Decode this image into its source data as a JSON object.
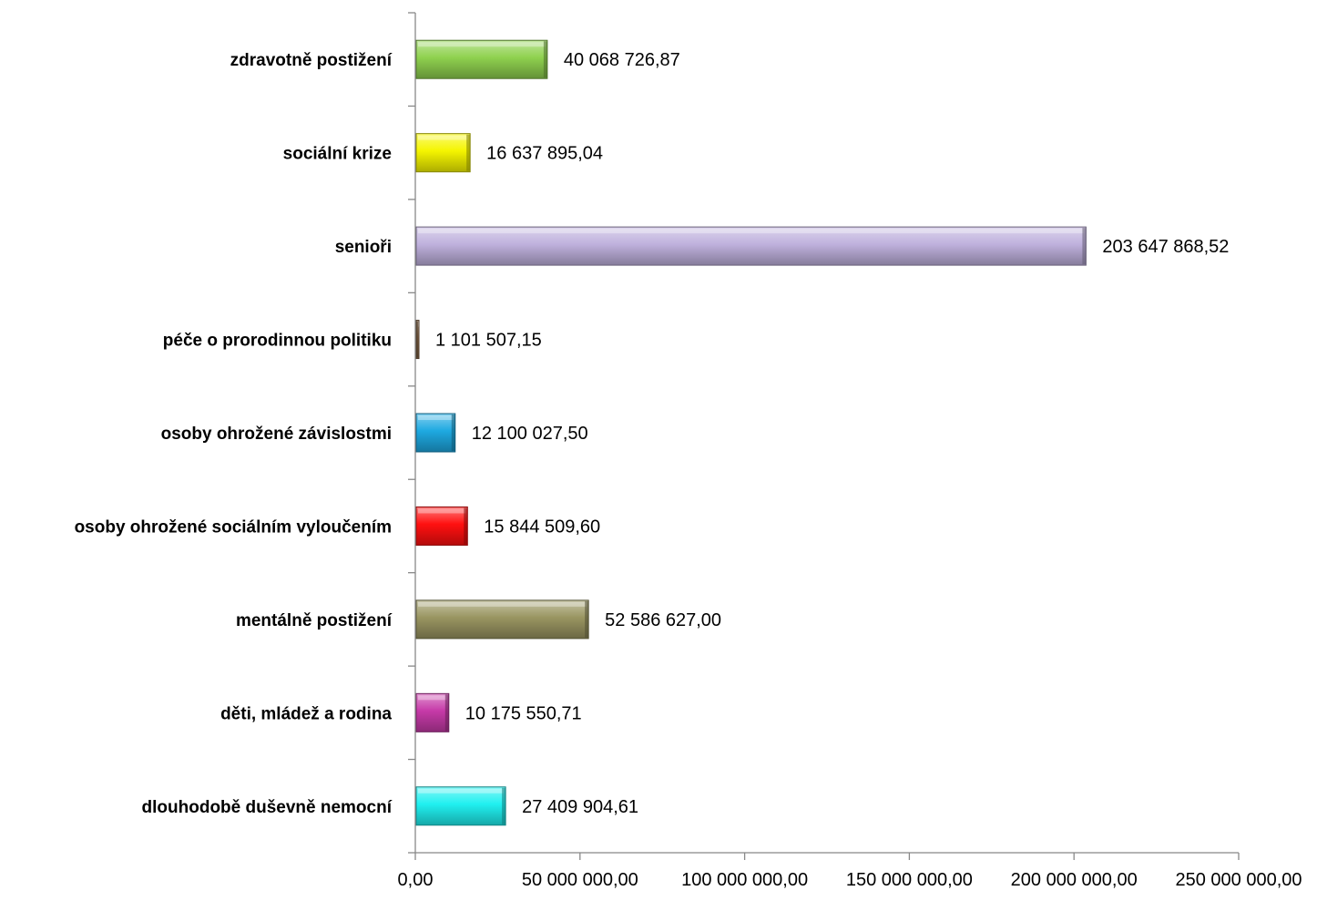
{
  "chart_data": {
    "type": "bar",
    "orientation": "horizontal",
    "title": "",
    "xlabel": "",
    "ylabel": "",
    "xlim": [
      0,
      250000000
    ],
    "x_ticks": [
      0,
      50000000,
      100000000,
      150000000,
      200000000,
      250000000
    ],
    "x_tick_labels": [
      "0,00",
      "50 000 000,00",
      "100 000 000,00",
      "150 000 000,00",
      "200 000 000,00",
      "250 000 000,00"
    ],
    "grid": false,
    "legend": "none",
    "categories": [
      "zdravotně postižení",
      "sociální krize",
      "senioři",
      "péče o prorodinnou politiku",
      "osoby ohrožené závislostmi",
      "osoby ohrožené sociálním vyloučením",
      "mentálně postižení",
      "děti, mládež a rodina",
      "dlouhodobě duševně nemocní"
    ],
    "values": [
      40068726.87,
      16637895.04,
      203647868.52,
      1101507.15,
      12100027.5,
      15844509.6,
      52586627.0,
      10175550.71,
      27409904.61
    ],
    "value_labels": [
      "40 068 726,87",
      "16 637 895,04",
      "203 647 868,52",
      "1 101 507,15",
      "12 100 027,50",
      "15 844 509,60",
      "52 586 627,00",
      "10 175 550,71",
      "27 409 904,61"
    ],
    "colors": [
      "#8fd14f",
      "#f5f500",
      "#bfb1dd",
      "#8b6a4a",
      "#1ea9e1",
      "#ff1010",
      "#999561",
      "#c63aa8",
      "#20f0f0"
    ],
    "axis_color": "#888888"
  }
}
